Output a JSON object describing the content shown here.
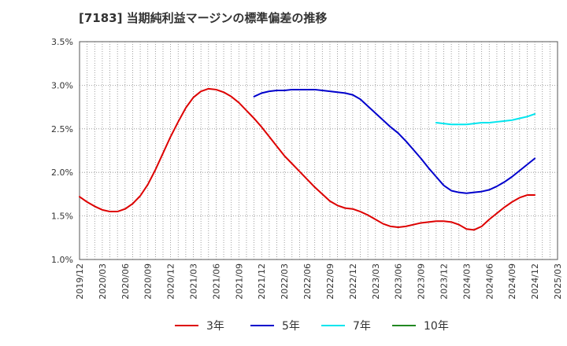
{
  "title": "[7183]  当期純利益マージンの標準偏差の推移",
  "chart_data": {
    "type": "line",
    "title": "[7183]  当期純利益マージンの標準偏差の推移",
    "xlabel": "",
    "ylabel": "",
    "ylim": [
      1.0,
      3.5
    ],
    "yticks": [
      "1.0%",
      "1.5%",
      "2.0%",
      "2.5%",
      "3.0%",
      "3.5%"
    ],
    "xticks": [
      "2019/12",
      "2020/03",
      "2020/06",
      "2020/09",
      "2020/12",
      "2021/03",
      "2021/06",
      "2021/09",
      "2021/12",
      "2022/03",
      "2022/06",
      "2022/09",
      "2022/12",
      "2023/03",
      "2023/06",
      "2023/09",
      "2023/12",
      "2024/03",
      "2024/06",
      "2024/09",
      "2024/12",
      "2025/03"
    ],
    "grid": true,
    "legend_position": "bottom",
    "series": [
      {
        "name": "3年",
        "color": "#dd0000",
        "points": [
          [
            "2019/12",
            1.72
          ],
          [
            "2020/01",
            1.66
          ],
          [
            "2020/02",
            1.61
          ],
          [
            "2020/03",
            1.57
          ],
          [
            "2020/04",
            1.55
          ],
          [
            "2020/05",
            1.55
          ],
          [
            "2020/06",
            1.58
          ],
          [
            "2020/07",
            1.64
          ],
          [
            "2020/08",
            1.73
          ],
          [
            "2020/09",
            1.86
          ],
          [
            "2020/10",
            2.03
          ],
          [
            "2020/11",
            2.22
          ],
          [
            "2020/12",
            2.41
          ],
          [
            "2021/01",
            2.58
          ],
          [
            "2021/02",
            2.74
          ],
          [
            "2021/03",
            2.86
          ],
          [
            "2021/04",
            2.93
          ],
          [
            "2021/05",
            2.96
          ],
          [
            "2021/06",
            2.95
          ],
          [
            "2021/07",
            2.92
          ],
          [
            "2021/08",
            2.87
          ],
          [
            "2021/09",
            2.8
          ],
          [
            "2021/10",
            2.71
          ],
          [
            "2021/11",
            2.62
          ],
          [
            "2021/12",
            2.52
          ],
          [
            "2022/01",
            2.41
          ],
          [
            "2022/02",
            2.3
          ],
          [
            "2022/03",
            2.19
          ],
          [
            "2022/04",
            2.1
          ],
          [
            "2022/05",
            2.01
          ],
          [
            "2022/06",
            1.92
          ],
          [
            "2022/07",
            1.83
          ],
          [
            "2022/08",
            1.75
          ],
          [
            "2022/09",
            1.67
          ],
          [
            "2022/10",
            1.62
          ],
          [
            "2022/11",
            1.59
          ],
          [
            "2022/12",
            1.58
          ],
          [
            "2023/01",
            1.55
          ],
          [
            "2023/02",
            1.51
          ],
          [
            "2023/03",
            1.46
          ],
          [
            "2023/04",
            1.41
          ],
          [
            "2023/05",
            1.38
          ],
          [
            "2023/06",
            1.37
          ],
          [
            "2023/07",
            1.38
          ],
          [
            "2023/08",
            1.4
          ],
          [
            "2023/09",
            1.42
          ],
          [
            "2023/10",
            1.43
          ],
          [
            "2023/11",
            1.44
          ],
          [
            "2023/12",
            1.44
          ],
          [
            "2024/01",
            1.43
          ],
          [
            "2024/02",
            1.4
          ],
          [
            "2024/03",
            1.35
          ],
          [
            "2024/04",
            1.34
          ],
          [
            "2024/05",
            1.38
          ],
          [
            "2024/06",
            1.46
          ],
          [
            "2024/07",
            1.53
          ],
          [
            "2024/08",
            1.6
          ],
          [
            "2024/09",
            1.66
          ],
          [
            "2024/10",
            1.71
          ],
          [
            "2024/11",
            1.74
          ],
          [
            "2024/12",
            1.74
          ]
        ]
      },
      {
        "name": "5年",
        "color": "#0000cc",
        "points": [
          [
            "2021/11",
            2.87
          ],
          [
            "2021/12",
            2.91
          ],
          [
            "2022/01",
            2.93
          ],
          [
            "2022/02",
            2.94
          ],
          [
            "2022/03",
            2.94
          ],
          [
            "2022/04",
            2.95
          ],
          [
            "2022/05",
            2.95
          ],
          [
            "2022/06",
            2.95
          ],
          [
            "2022/07",
            2.95
          ],
          [
            "2022/08",
            2.94
          ],
          [
            "2022/09",
            2.93
          ],
          [
            "2022/10",
            2.92
          ],
          [
            "2022/11",
            2.91
          ],
          [
            "2022/12",
            2.89
          ],
          [
            "2023/01",
            2.84
          ],
          [
            "2023/02",
            2.76
          ],
          [
            "2023/03",
            2.68
          ],
          [
            "2023/04",
            2.6
          ],
          [
            "2023/05",
            2.52
          ],
          [
            "2023/06",
            2.45
          ],
          [
            "2023/07",
            2.36
          ],
          [
            "2023/08",
            2.26
          ],
          [
            "2023/09",
            2.16
          ],
          [
            "2023/10",
            2.05
          ],
          [
            "2023/11",
            1.95
          ],
          [
            "2023/12",
            1.85
          ],
          [
            "2024/01",
            1.79
          ],
          [
            "2024/02",
            1.77
          ],
          [
            "2024/03",
            1.76
          ],
          [
            "2024/04",
            1.77
          ],
          [
            "2024/05",
            1.78
          ],
          [
            "2024/06",
            1.8
          ],
          [
            "2024/07",
            1.84
          ],
          [
            "2024/08",
            1.89
          ],
          [
            "2024/09",
            1.95
          ],
          [
            "2024/10",
            2.02
          ],
          [
            "2024/11",
            2.09
          ],
          [
            "2024/12",
            2.16
          ]
        ]
      },
      {
        "name": "7年",
        "color": "#00e5ee",
        "points": [
          [
            "2023/11",
            2.57
          ],
          [
            "2023/12",
            2.56
          ],
          [
            "2024/01",
            2.55
          ],
          [
            "2024/02",
            2.55
          ],
          [
            "2024/03",
            2.55
          ],
          [
            "2024/04",
            2.56
          ],
          [
            "2024/05",
            2.57
          ],
          [
            "2024/06",
            2.57
          ],
          [
            "2024/07",
            2.58
          ],
          [
            "2024/08",
            2.59
          ],
          [
            "2024/09",
            2.6
          ],
          [
            "2024/10",
            2.62
          ],
          [
            "2024/11",
            2.64
          ],
          [
            "2024/12",
            2.67
          ]
        ]
      },
      {
        "name": "10年",
        "color": "#228822",
        "points": []
      }
    ]
  }
}
